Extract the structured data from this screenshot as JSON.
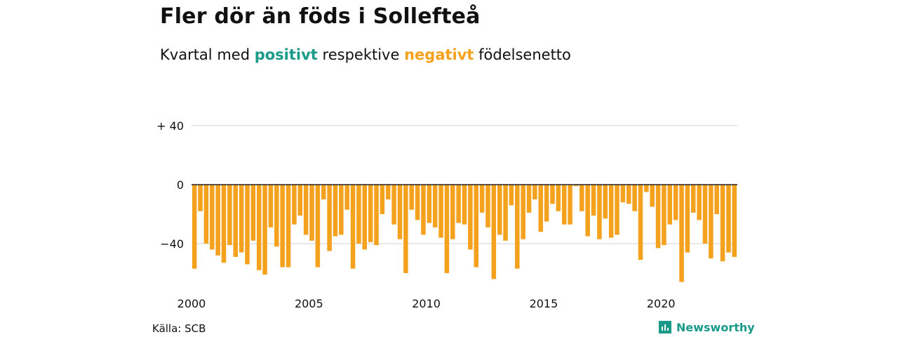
{
  "header": {
    "title": "Fler dör än föds i Sollefteå",
    "subtitle_parts": [
      "Kvartal med",
      "positivt",
      "respektive",
      "negativt",
      "födelsenetto"
    ]
  },
  "footer": {
    "source": "Källa: SCB",
    "brand": "Newsworthy",
    "brand_icon": "newsworthy-logo-icon"
  },
  "colors": {
    "positive": "#1a9a88",
    "negative": "#f4a21e",
    "grid": "#d9d9d9",
    "zero_line": "#222222"
  },
  "chart_data": {
    "type": "bar",
    "title": "Fler dör än föds i Sollefteå",
    "subtitle": "Kvartal med positivt respektive negativt födelsenetto",
    "series_colors": {
      "positive": "#1a9a88",
      "negative": "#f4a21e"
    },
    "x_start_year": 2000,
    "x_unit": "quarter",
    "ylim": [
      -68,
      40
    ],
    "yticks": [
      40,
      0,
      -40
    ],
    "ytick_labels": [
      "+ 40",
      "0",
      "−40"
    ],
    "xticks": [
      2000,
      2005,
      2010,
      2015,
      2020
    ],
    "grid": true,
    "values": [
      -57,
      -18,
      -40,
      -44,
      -48,
      -53,
      -41,
      -49,
      -46,
      -54,
      -38,
      -58,
      -61,
      -29,
      -42,
      -56,
      -56,
      -27,
      -21,
      -34,
      -38,
      -56,
      -10,
      -45,
      -35,
      -34,
      -17,
      -57,
      -40,
      -44,
      -39,
      -41,
      -20,
      -10,
      -27,
      -37,
      -60,
      -17,
      -24,
      -34,
      -26,
      -29,
      -36,
      -60,
      -37,
      -26,
      -27,
      -44,
      -56,
      -19,
      -29,
      -64,
      -34,
      -38,
      -14,
      -57,
      -37,
      -19,
      -10,
      -32,
      -25,
      -13,
      -18,
      -27,
      -27,
      -1,
      -18,
      -35,
      -21,
      -37,
      -23,
      -36,
      -34,
      -12,
      -13,
      -18,
      -51,
      -5,
      -15,
      -43,
      -41,
      -27,
      -24,
      -66,
      -46,
      -19,
      -24,
      -40,
      -50,
      -20,
      -52,
      -46,
      -49
    ]
  }
}
